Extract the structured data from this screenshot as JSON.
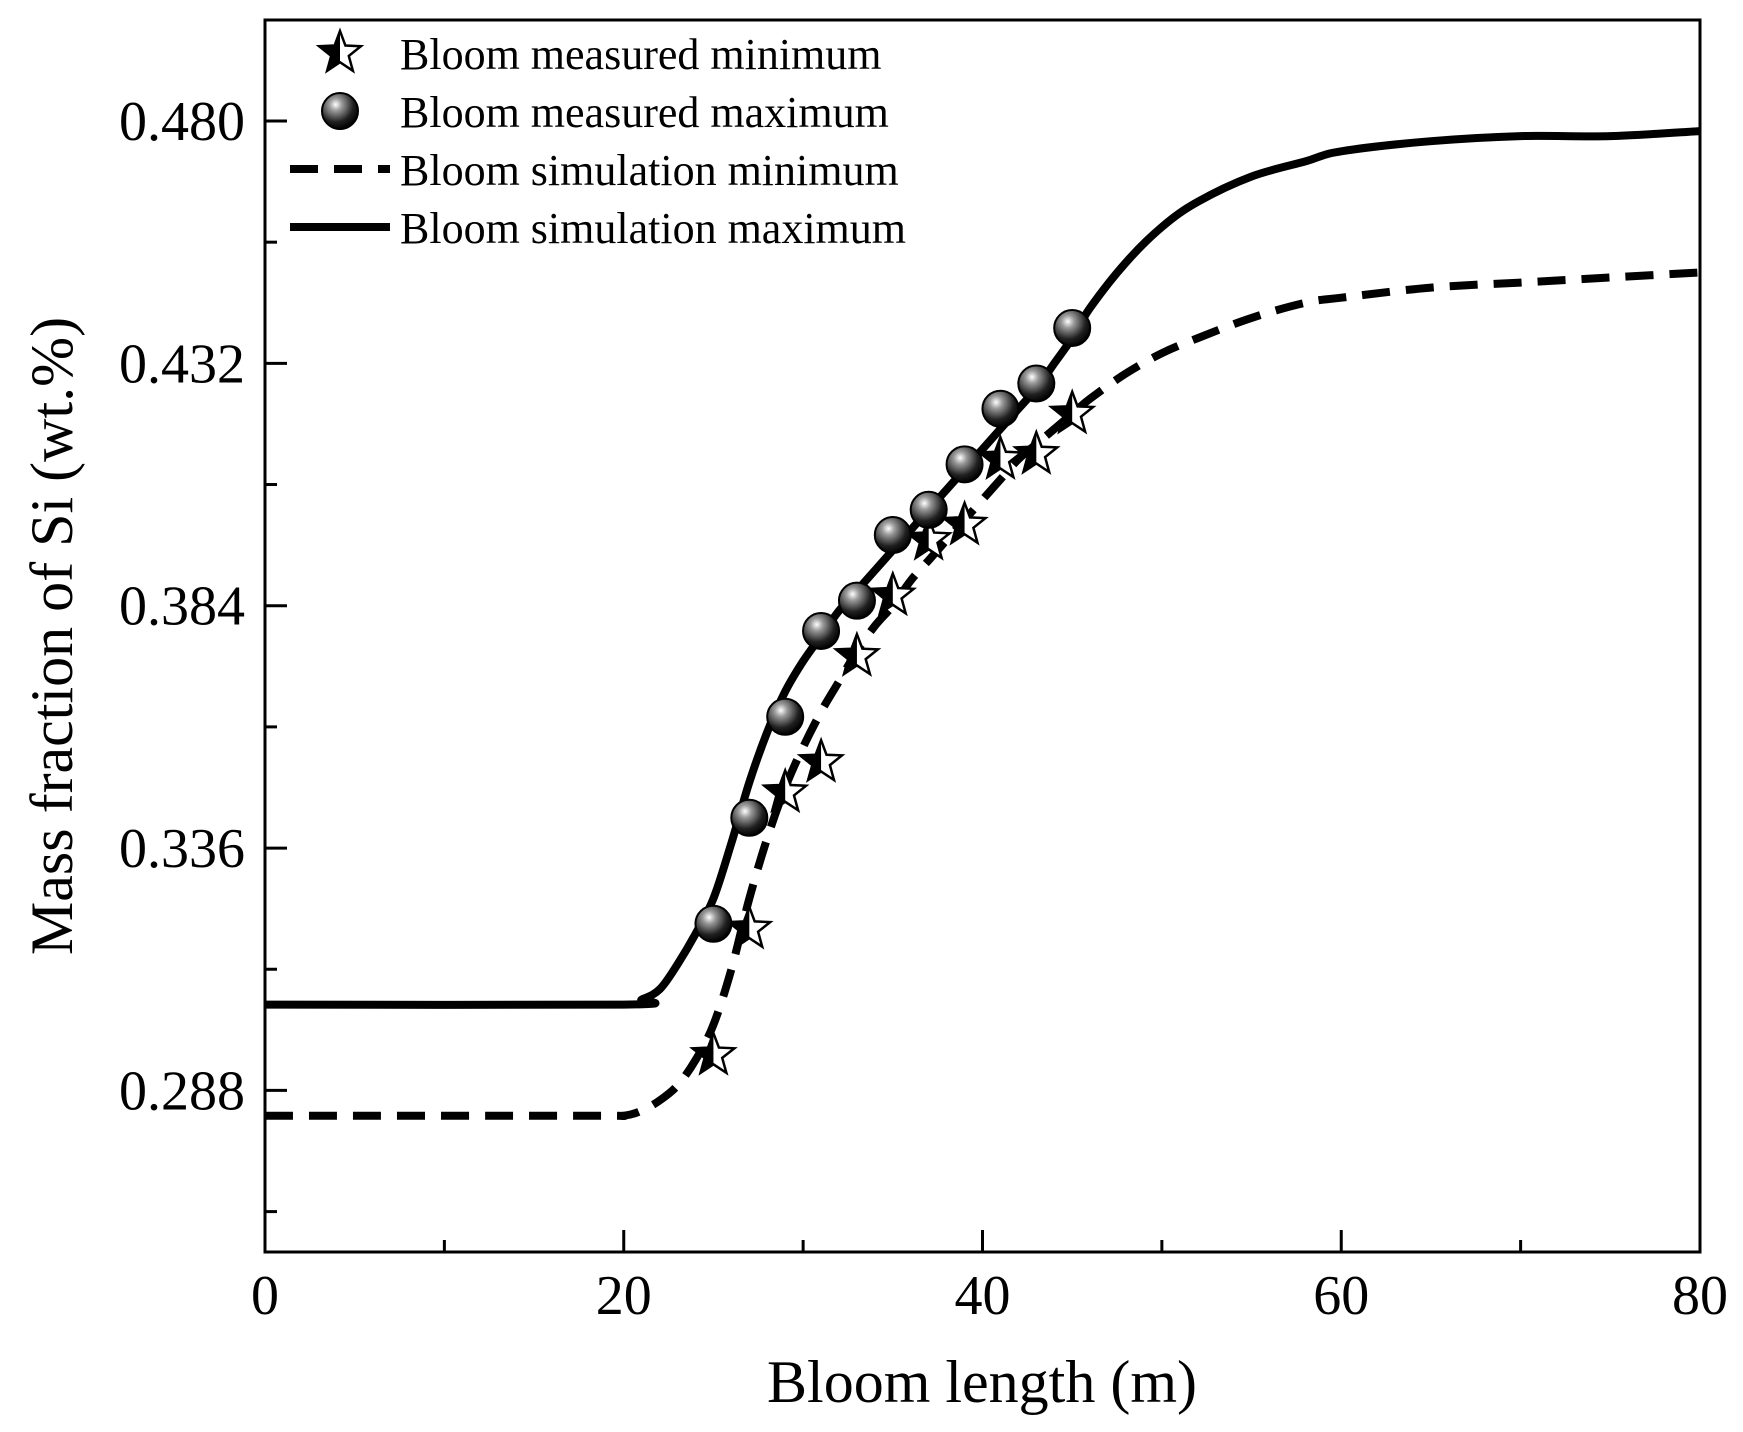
{
  "chart_data": {
    "type": "line",
    "title": "",
    "xlabel": "Bloom length (m)",
    "ylabel": "Mass fraction of Si (wt.%)",
    "xlim": [
      0,
      80
    ],
    "ylim": [
      0.256,
      0.5
    ],
    "x_ticks": [
      0,
      20,
      40,
      60,
      80
    ],
    "x_tick_labels": [
      "0",
      "20",
      "40",
      "60",
      "80"
    ],
    "x_minor_ticks": [
      10,
      30,
      50,
      70
    ],
    "y_ticks": [
      0.288,
      0.336,
      0.384,
      0.432,
      0.48
    ],
    "y_tick_labels": [
      "0.288",
      "0.336",
      "0.384",
      "0.432",
      "0.480"
    ],
    "y_minor_ticks": [
      0.264,
      0.312,
      0.36,
      0.408,
      0.456
    ],
    "grid": false,
    "legend_position": "top-left",
    "series": [
      {
        "name": "Bloom measured minimum",
        "kind": "scatter",
        "marker": "star",
        "color": "#000000",
        "x": [
          25,
          27,
          29,
          31,
          33,
          35,
          37,
          39,
          41,
          43,
          45
        ],
        "y": [
          0.295,
          0.32,
          0.347,
          0.353,
          0.374,
          0.386,
          0.397,
          0.4,
          0.413,
          0.414,
          0.422
        ]
      },
      {
        "name": "Bloom measured maximum",
        "kind": "scatter",
        "marker": "sphere",
        "color": "#000000",
        "x": [
          25,
          27,
          29,
          31,
          33,
          35,
          37,
          39,
          41,
          43,
          45
        ],
        "y": [
          0.321,
          0.342,
          0.362,
          0.379,
          0.385,
          0.398,
          0.403,
          0.412,
          0.423,
          0.428,
          0.439
        ]
      },
      {
        "name": "Bloom simulation minimum",
        "kind": "line",
        "style": "dashed",
        "color": "#000000",
        "x": [
          0,
          18,
          20,
          21,
          22,
          23,
          24,
          25,
          26,
          27,
          28,
          29,
          30,
          31,
          32,
          33,
          34,
          35,
          36,
          37,
          38,
          39,
          40,
          41,
          42,
          43,
          44,
          45,
          46,
          48,
          50,
          52,
          55,
          58,
          60,
          65,
          70,
          75,
          80
        ],
        "y": [
          0.283,
          0.283,
          0.283,
          0.284,
          0.286,
          0.289,
          0.294,
          0.301,
          0.312,
          0.326,
          0.338,
          0.348,
          0.356,
          0.363,
          0.369,
          0.375,
          0.38,
          0.384,
          0.389,
          0.393,
          0.397,
          0.401,
          0.405,
          0.409,
          0.413,
          0.416,
          0.419,
          0.422,
          0.425,
          0.43,
          0.434,
          0.437,
          0.441,
          0.444,
          0.445,
          0.447,
          0.448,
          0.449,
          0.45
        ]
      },
      {
        "name": "Bloom simulation maximum",
        "kind": "line",
        "style": "solid",
        "color": "#000000",
        "x": [
          0,
          20,
          21,
          22,
          23,
          24,
          25,
          26,
          27,
          28,
          29,
          30,
          31,
          32,
          33,
          34,
          35,
          36,
          37,
          38,
          39,
          40,
          41,
          42,
          43,
          44,
          45,
          46,
          48,
          50,
          52,
          55,
          58,
          60,
          65,
          70,
          75,
          80
        ],
        "y": [
          0.305,
          0.305,
          0.306,
          0.308,
          0.313,
          0.319,
          0.326,
          0.337,
          0.349,
          0.359,
          0.367,
          0.373,
          0.378,
          0.383,
          0.387,
          0.391,
          0.395,
          0.399,
          0.403,
          0.407,
          0.411,
          0.415,
          0.419,
          0.423,
          0.427,
          0.432,
          0.437,
          0.443,
          0.452,
          0.459,
          0.464,
          0.469,
          0.472,
          0.474,
          0.476,
          0.477,
          0.477,
          0.478
        ]
      }
    ]
  }
}
